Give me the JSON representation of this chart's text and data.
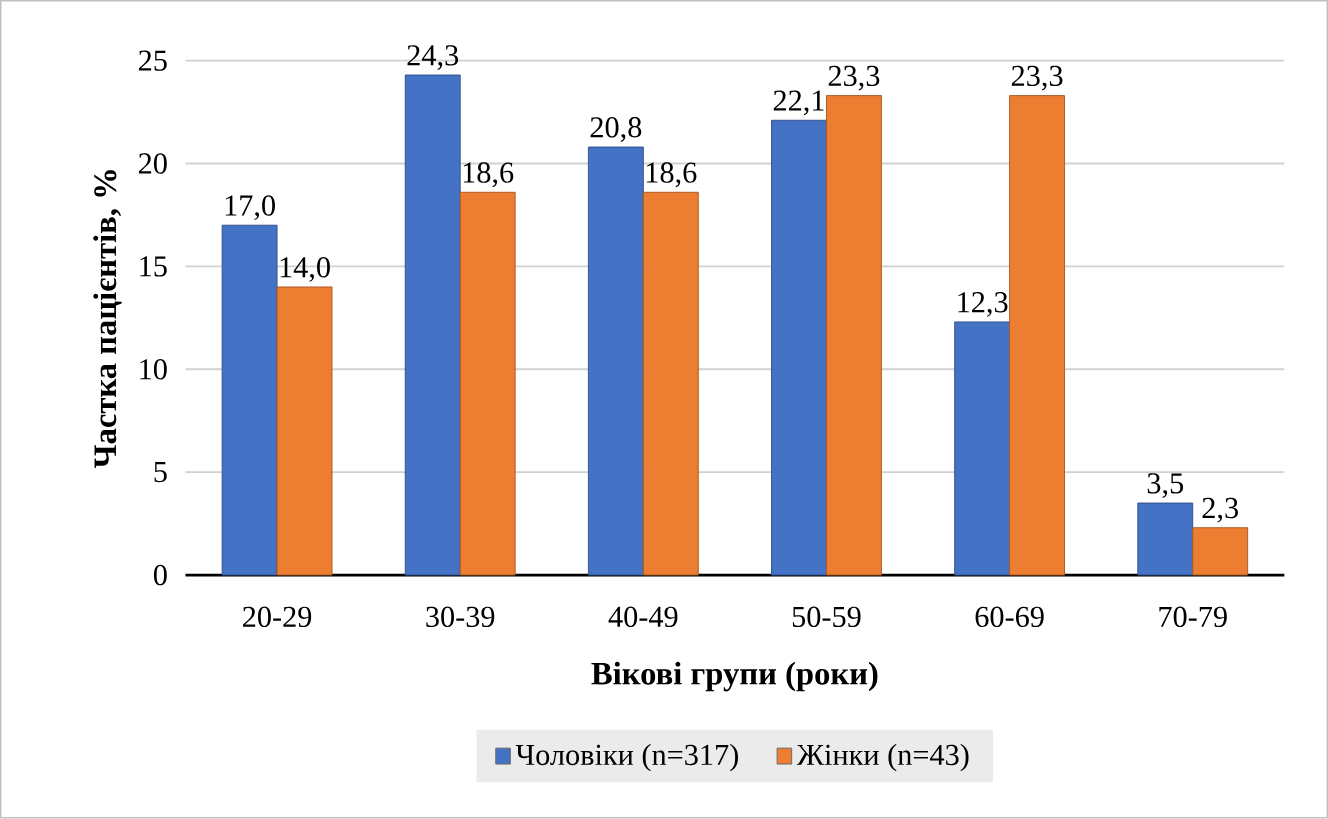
{
  "chart_data": {
    "type": "bar",
    "categories": [
      "20-29",
      "30-39",
      "40-49",
      "50-59",
      "60-69",
      "70-79"
    ],
    "series": [
      {
        "name": "Чоловіки (n=317)",
        "color": "#4472c4",
        "values": [
          17.0,
          24.3,
          20.8,
          22.1,
          12.3,
          3.5
        ],
        "value_labels": [
          "17,0",
          "24,3",
          "20,8",
          "22,1",
          "12,3",
          "3,5"
        ]
      },
      {
        "name": "Жінки (n=43)",
        "color": "#ed7d31",
        "values": [
          14.0,
          18.6,
          18.6,
          23.3,
          23.3,
          2.3
        ],
        "value_labels": [
          "14,0",
          "18,6",
          "18,6",
          "23,3",
          "23,3",
          "2,3"
        ]
      }
    ],
    "xlabel": "Вікові групи (роки)",
    "ylabel": "Частка пацієнтів, %",
    "ylim": [
      0,
      25
    ],
    "yticks": [
      0,
      5,
      10,
      15,
      20,
      25
    ],
    "grid": "y",
    "legend": "bottom"
  }
}
